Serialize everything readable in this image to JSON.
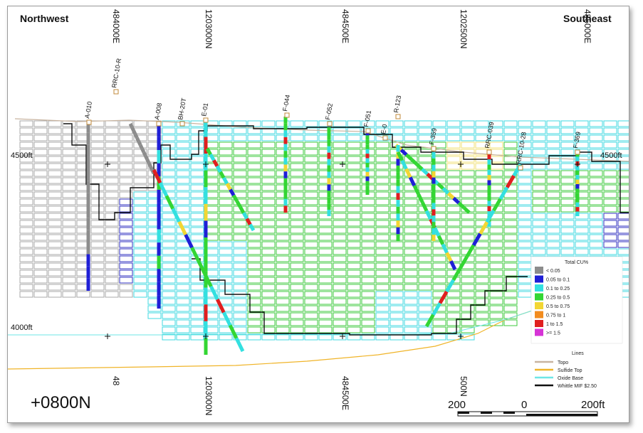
{
  "directions": {
    "left": "Northwest",
    "right": "Southeast"
  },
  "eastings_top": [
    "484000E",
    "484500E",
    "485000E"
  ],
  "northings_top": [
    "1203000N",
    "1202500N"
  ],
  "eastings_bottom": [
    "48",
    "484500E"
  ],
  "northings_bottom": [
    "1203000N",
    "500N"
  ],
  "elevations": [
    "4500ft",
    "4500ft",
    "4000ft"
  ],
  "section": "+0800N",
  "scale": {
    "left": "200",
    "mid": "0",
    "right": "200ft"
  },
  "holes": [
    "A-010",
    "RRC-10-R",
    "A-008",
    "BH-20T",
    "E-01",
    "F-044",
    "F-052",
    "F-051",
    "E-0",
    "R-123",
    "F-359",
    "RRC-039",
    "RRC-10-28",
    "F-369"
  ],
  "legend_grade": {
    "title": "Total CU%",
    "items": [
      {
        "label": "< 0.05",
        "color": "#8c8c8c"
      },
      {
        "label": "0.05 to 0.1",
        "color": "#1f1fd6"
      },
      {
        "label": "0.1 to 0.25",
        "color": "#33e0e0"
      },
      {
        "label": "0.25 to 0.5",
        "color": "#33d633"
      },
      {
        "label": "0.5 to 0.75",
        "color": "#f2d633"
      },
      {
        "label": "0.75 to 1",
        "color": "#f28c1f"
      },
      {
        "label": "1 to 1.5",
        "color": "#e01f1f"
      },
      {
        "label": ">= 1.5",
        "color": "#d633d6"
      }
    ]
  },
  "legend_lines": {
    "title": "Lines",
    "items": [
      {
        "label": "Topo",
        "color": "#c8b4a0"
      },
      {
        "label": "Sulfide Top",
        "color": "#f0b428"
      },
      {
        "label": "Oxide Base",
        "color": "#6ee6e6"
      },
      {
        "label": "Whittle MIF $2.50",
        "color": "#111111"
      }
    ]
  },
  "colors": {
    "topo": "#c8b4a0",
    "sulfide": "#f0b428",
    "oxide": "#6ee6e6",
    "whittle": "#111111",
    "blk_low": "#a8a8a8",
    "blk_vlow": "#3030c0",
    "blk_cyan": "#40d8e0",
    "blk_green": "#3cc83c",
    "blk_yellow": "#f2e07a"
  }
}
